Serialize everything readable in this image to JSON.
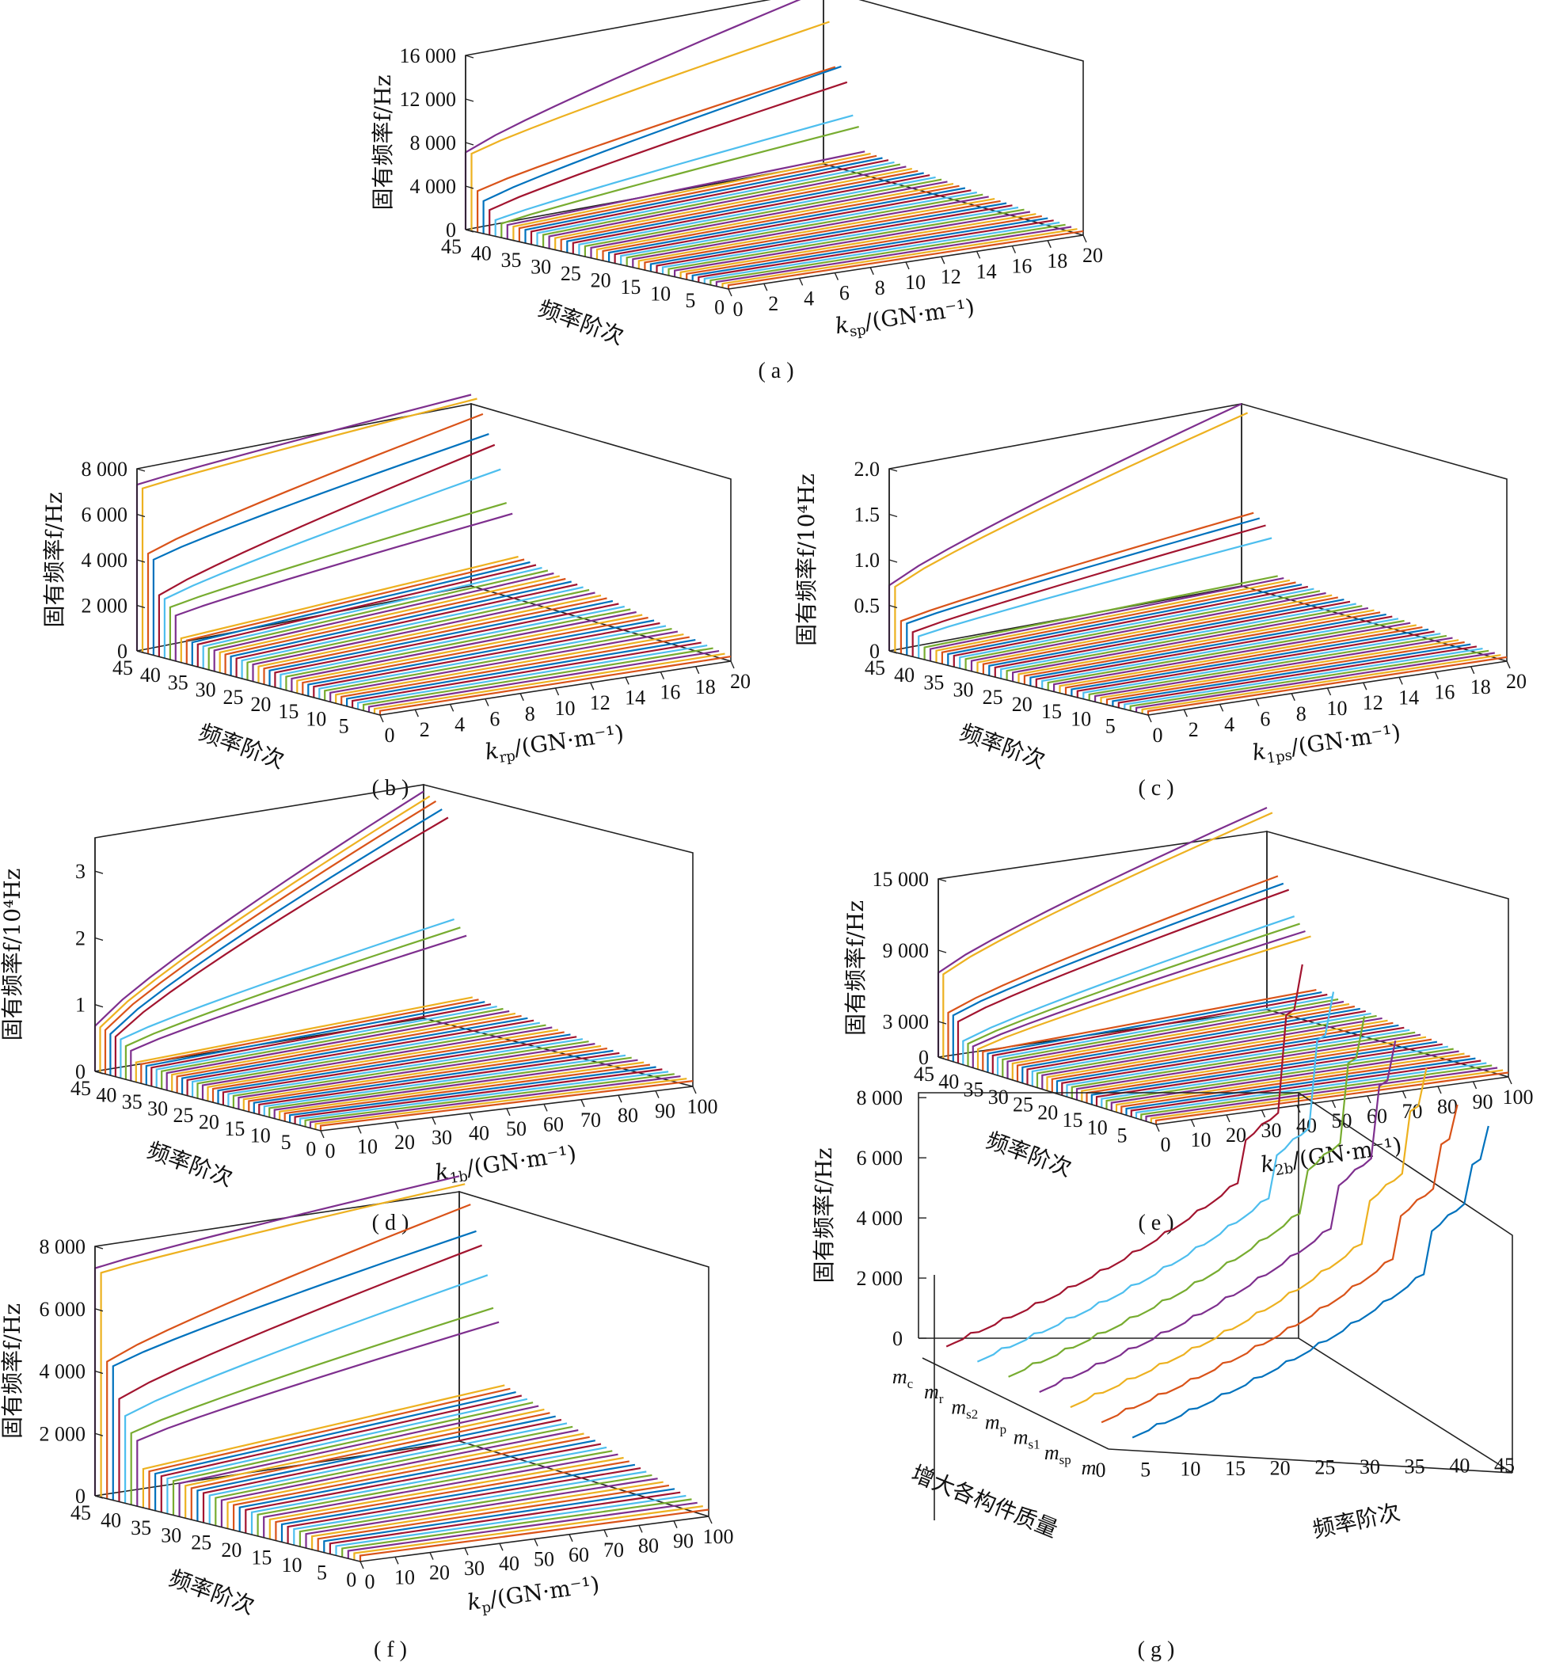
{
  "figure": {
    "captions": [
      "( a )",
      "( b )",
      "( c )",
      "( d )",
      "( e )",
      "( f )",
      "( g )"
    ]
  },
  "chart_data": [
    {
      "panel": "a",
      "type": "line",
      "zlabel": "固有频率f/Hz",
      "ylabel": "频率阶次",
      "xlabel": "ksp/(GN·m⁻¹)",
      "x_name": "k",
      "x_sub": "sp",
      "x_unit": "/(GN·m⁻¹)",
      "zticks": [
        "0",
        "4 000",
        "8 000",
        "12 000",
        "16 000"
      ],
      "zlim": [
        0,
        16000
      ],
      "yticks": [
        "45",
        "40",
        "35",
        "30",
        "25",
        "20",
        "15",
        "10",
        "5",
        "0"
      ],
      "xticks": [
        "0",
        "2",
        "4",
        "6",
        "8",
        "10",
        "12",
        "14",
        "16",
        "18",
        "20"
      ],
      "xlim": [
        0,
        20
      ],
      "order_range": [
        1,
        45
      ],
      "orders_shown": 45,
      "highlight_series": [
        {
          "order": 45,
          "start": 7100,
          "end": 16000
        },
        {
          "order": 44,
          "start": 7100,
          "end": 13200
        },
        {
          "order": 43,
          "start": 3800,
          "end": 9200
        },
        {
          "order": 42,
          "start": 3000,
          "end": 9400
        },
        {
          "order": 41,
          "start": 2300,
          "end": 8100
        },
        {
          "order": 40,
          "start": 1500,
          "end": 5200
        },
        {
          "order": 39,
          "start": 1300,
          "end": 4300
        }
      ],
      "floor_end": 2100
    },
    {
      "panel": "b",
      "type": "line",
      "zlabel": "固有频率f/Hz",
      "ylabel": "频率阶次",
      "xlabel": "krp/(GN·m⁻¹)",
      "x_name": "k",
      "x_sub": "rp",
      "x_unit": "/(GN·m⁻¹)",
      "zticks": [
        "0",
        "2 000",
        "4 000",
        "6 000",
        "8 000"
      ],
      "zlim": [
        0,
        8000
      ],
      "yticks": [
        "45",
        "40",
        "35",
        "30",
        "25",
        "20",
        "15",
        "10",
        "5"
      ],
      "xticks": [
        "0",
        "2",
        "4",
        "6",
        "8",
        "10",
        "12",
        "14",
        "16",
        "18",
        "20"
      ],
      "xlim": [
        0,
        20
      ],
      "order_range": [
        1,
        45
      ],
      "orders_shown": 45,
      "highlight_series": [
        {
          "order": 45,
          "start": 7300,
          "end": 8400
        },
        {
          "order": 44,
          "start": 7200,
          "end": 8300
        },
        {
          "order": 43,
          "start": 4400,
          "end": 7700
        },
        {
          "order": 42,
          "start": 4200,
          "end": 6900
        },
        {
          "order": 41,
          "start": 2700,
          "end": 6500
        },
        {
          "order": 40,
          "start": 2600,
          "end": 5500
        },
        {
          "order": 39,
          "start": 2300,
          "end": 4100
        },
        {
          "order": 38,
          "start": 2000,
          "end": 3700
        }
      ],
      "floor_end": 2000
    },
    {
      "panel": "c",
      "type": "line",
      "zlabel": "固有频率f/10⁴Hz",
      "ylabel": "频率阶次",
      "xlabel": "k1ps/(GN·m⁻¹)",
      "x_name": "k",
      "x_sub": "1ps",
      "x_unit": "/(GN·m⁻¹)",
      "zticks": [
        "0",
        "0.5",
        "1.0",
        "1.5",
        "2.0"
      ],
      "zlim": [
        0,
        2.0
      ],
      "yticks": [
        "45",
        "40",
        "35",
        "30",
        "25",
        "20",
        "15",
        "10",
        "5"
      ],
      "xticks": [
        "0",
        "2",
        "4",
        "6",
        "8",
        "10",
        "12",
        "14",
        "16",
        "18",
        "20"
      ],
      "xlim": [
        0,
        20
      ],
      "order_range": [
        1,
        45
      ],
      "orders_shown": 45,
      "highlight_series": [
        {
          "order": 45,
          "start": 0.72,
          "end": 2.0
        },
        {
          "order": 44,
          "start": 0.72,
          "end": 1.92
        },
        {
          "order": 43,
          "start": 0.36,
          "end": 0.84
        },
        {
          "order": 42,
          "start": 0.35,
          "end": 0.8
        },
        {
          "order": 41,
          "start": 0.27,
          "end": 0.74
        },
        {
          "order": 40,
          "start": 0.24,
          "end": 0.62
        }
      ],
      "floor_end": 0.2
    },
    {
      "panel": "d",
      "type": "line",
      "zlabel": "固有频率f/10⁴Hz",
      "ylabel": "频率阶次",
      "xlabel": "k1b/(GN·m⁻¹)",
      "x_name": "k",
      "x_sub": "1b",
      "x_unit": "/(GN·m⁻¹)",
      "zticks": [
        "0",
        "1",
        "2",
        "3"
      ],
      "zlim": [
        0,
        3.5
      ],
      "yticks": [
        "45",
        "40",
        "35",
        "30",
        "25",
        "20",
        "15",
        "10",
        "5",
        "0"
      ],
      "xticks": [
        "0",
        "10",
        "20",
        "30",
        "40",
        "50",
        "60",
        "70",
        "80",
        "90",
        "100"
      ],
      "xlim": [
        0,
        100
      ],
      "order_range": [
        1,
        45
      ],
      "orders_shown": 45,
      "highlight_series": [
        {
          "order": 45,
          "start": 0.68,
          "end": 3.4
        },
        {
          "order": 44,
          "start": 0.68,
          "end": 3.35
        },
        {
          "order": 43,
          "start": 0.66,
          "end": 3.3
        },
        {
          "order": 42,
          "start": 0.62,
          "end": 3.2
        },
        {
          "order": 41,
          "start": 0.6,
          "end": 3.1
        },
        {
          "order": 40,
          "start": 0.58,
          "end": 1.6
        },
        {
          "order": 39,
          "start": 0.5,
          "end": 1.5
        },
        {
          "order": 38,
          "start": 0.45,
          "end": 1.4
        }
      ],
      "floor_end": 0.5
    },
    {
      "panel": "e",
      "type": "line",
      "zlabel": "固有频率f/Hz",
      "ylabel": "频率阶次",
      "xlabel": "k2b/(GN·m⁻¹)",
      "x_name": "k",
      "x_sub": "2b",
      "x_unit": "/(GN·m⁻¹)",
      "zticks": [
        "0",
        "3 000",
        "9 000",
        "15 000"
      ],
      "ztick_values": [
        0,
        3000,
        9000,
        15000
      ],
      "zlim": [
        0,
        15000
      ],
      "yticks": [
        "45",
        "40",
        "35",
        "30",
        "25",
        "20",
        "15",
        "10",
        "5"
      ],
      "xticks": [
        "0",
        "10",
        "20",
        "30",
        "40",
        "50",
        "60",
        "70",
        "80",
        "90",
        "100"
      ],
      "xlim": [
        0,
        100
      ],
      "order_range": [
        1,
        45
      ],
      "orders_shown": 45,
      "highlight_series": [
        {
          "order": 45,
          "start": 7100,
          "end": 17000
        },
        {
          "order": 44,
          "start": 7100,
          "end": 16700
        },
        {
          "order": 43,
          "start": 4000,
          "end": 11500
        },
        {
          "order": 42,
          "start": 3900,
          "end": 11000
        },
        {
          "order": 41,
          "start": 3500,
          "end": 10600
        },
        {
          "order": 40,
          "start": 2000,
          "end": 8500
        },
        {
          "order": 39,
          "start": 1900,
          "end": 8000
        },
        {
          "order": 38,
          "start": 1800,
          "end": 7500
        },
        {
          "order": 37,
          "start": 1700,
          "end": 7200
        }
      ],
      "floor_end": 3000
    },
    {
      "panel": "f",
      "type": "line",
      "zlabel": "固有频率f/Hz",
      "ylabel": "频率阶次",
      "xlabel": "kp/(GN·m⁻¹)",
      "x_name": "k",
      "x_sub": "p",
      "x_unit": "/(GN·m⁻¹)",
      "zticks": [
        "0",
        "2 000",
        "4 000",
        "6 000",
        "8 000"
      ],
      "zlim": [
        0,
        8000
      ],
      "yticks": [
        "45",
        "40",
        "35",
        "30",
        "25",
        "20",
        "15",
        "10",
        "5",
        "0"
      ],
      "xticks": [
        "0",
        "10",
        "20",
        "30",
        "40",
        "50",
        "60",
        "70",
        "80",
        "90",
        "100"
      ],
      "xlim": [
        0,
        100
      ],
      "order_range": [
        1,
        45
      ],
      "orders_shown": 45,
      "highlight_series": [
        {
          "order": 45,
          "start": 7300,
          "end": 8500
        },
        {
          "order": 44,
          "start": 7200,
          "end": 8300
        },
        {
          "order": 43,
          "start": 4400,
          "end": 7700
        },
        {
          "order": 42,
          "start": 4300,
          "end": 6900
        },
        {
          "order": 41,
          "start": 3300,
          "end": 6500
        },
        {
          "order": 40,
          "start": 2800,
          "end": 5600
        },
        {
          "order": 39,
          "start": 2300,
          "end": 4600
        },
        {
          "order": 38,
          "start": 2100,
          "end": 4200
        }
      ],
      "floor_end": 2400
    },
    {
      "panel": "g",
      "type": "line",
      "zlabel": "固有频率f/Hz",
      "ylabel": "增大各构件质量",
      "xlabel": "频率阶次",
      "zticks": [
        "0",
        "2 000",
        "4 000",
        "6 000",
        "8 000"
      ],
      "zlim": [
        0,
        8000
      ],
      "xticks": [
        "0",
        "5",
        "10",
        "15",
        "20",
        "25",
        "30",
        "35",
        "40",
        "45"
      ],
      "xlim": [
        0,
        45
      ],
      "categories": [
        {
          "base": "m",
          "sub": "c"
        },
        {
          "base": "m",
          "sub": "r"
        },
        {
          "base": "m",
          "sub": "s2"
        },
        {
          "base": "m",
          "sub": "p"
        },
        {
          "base": "m",
          "sub": "s1"
        },
        {
          "base": "m",
          "sub": "sp"
        },
        {
          "base": "m",
          "sub": ""
        }
      ],
      "series_max": [
        8700,
        8300,
        8000,
        7700,
        7300,
        6600,
        6400
      ]
    }
  ]
}
